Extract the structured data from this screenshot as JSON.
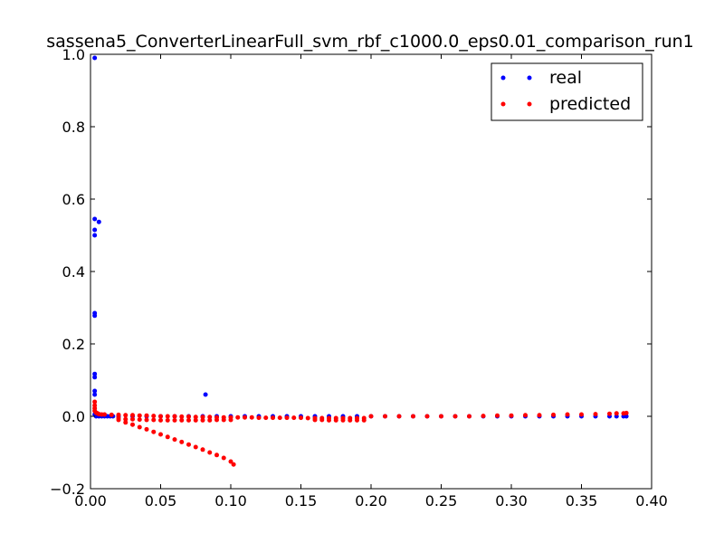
{
  "chart_data": {
    "type": "scatter",
    "title": "sassena5_ConverterLinearFull_svm_rbf_c1000.0_eps0.01_comparison_run1",
    "xlabel": "",
    "ylabel": "",
    "xlim": [
      0.0,
      0.4
    ],
    "ylim": [
      -0.2,
      1.0
    ],
    "x_ticks": [
      "0.00",
      "0.05",
      "0.10",
      "0.15",
      "0.20",
      "0.25",
      "0.30",
      "0.35",
      "0.40"
    ],
    "y_ticks": [
      "−0.2",
      "0.0",
      "0.2",
      "0.4",
      "0.6",
      "0.8",
      "1.0"
    ],
    "grid": false,
    "legend_position": "top-right",
    "series": [
      {
        "name": "real",
        "color": "#0000ff",
        "points": [
          [
            0.003,
            0.99
          ],
          [
            0.003,
            0.545
          ],
          [
            0.003,
            0.515
          ],
          [
            0.003,
            0.5
          ],
          [
            0.006,
            0.537
          ],
          [
            0.003,
            0.285
          ],
          [
            0.003,
            0.278
          ],
          [
            0.003,
            0.117
          ],
          [
            0.003,
            0.108
          ],
          [
            0.003,
            0.07
          ],
          [
            0.003,
            0.06
          ],
          [
            0.082,
            0.06
          ],
          [
            0.003,
            0.005
          ],
          [
            0.004,
            0.0
          ],
          [
            0.006,
            0.0
          ],
          [
            0.008,
            0.0
          ],
          [
            0.01,
            0.0
          ],
          [
            0.012,
            0.0
          ],
          [
            0.014,
            0.0
          ],
          [
            0.016,
            0.0
          ],
          [
            0.02,
            0.0
          ],
          [
            0.03,
            0.0
          ],
          [
            0.04,
            0.0
          ],
          [
            0.05,
            0.0
          ],
          [
            0.06,
            0.0
          ],
          [
            0.07,
            0.0
          ],
          [
            0.08,
            0.0
          ],
          [
            0.09,
            0.0
          ],
          [
            0.1,
            0.0
          ],
          [
            0.11,
            0.0
          ],
          [
            0.12,
            0.0
          ],
          [
            0.13,
            0.0
          ],
          [
            0.14,
            0.0
          ],
          [
            0.15,
            0.0
          ],
          [
            0.16,
            0.0
          ],
          [
            0.17,
            0.0
          ],
          [
            0.18,
            0.0
          ],
          [
            0.19,
            0.0
          ],
          [
            0.2,
            0.0
          ],
          [
            0.21,
            0.0
          ],
          [
            0.22,
            0.0
          ],
          [
            0.23,
            0.0
          ],
          [
            0.24,
            0.0
          ],
          [
            0.25,
            0.0
          ],
          [
            0.26,
            0.0
          ],
          [
            0.27,
            0.0
          ],
          [
            0.28,
            0.0
          ],
          [
            0.29,
            0.0
          ],
          [
            0.3,
            0.0
          ],
          [
            0.31,
            0.0
          ],
          [
            0.32,
            0.0
          ],
          [
            0.33,
            0.0
          ],
          [
            0.34,
            0.0
          ],
          [
            0.35,
            0.0
          ],
          [
            0.36,
            0.0
          ],
          [
            0.37,
            0.0
          ],
          [
            0.375,
            0.0
          ],
          [
            0.38,
            0.0
          ],
          [
            0.382,
            0.0
          ]
        ]
      },
      {
        "name": "predicted",
        "color": "#ff0000",
        "points": [
          [
            0.003,
            0.04
          ],
          [
            0.003,
            0.03
          ],
          [
            0.003,
            0.022
          ],
          [
            0.003,
            0.015
          ],
          [
            0.004,
            0.01
          ],
          [
            0.005,
            0.008
          ],
          [
            0.006,
            0.006
          ],
          [
            0.008,
            0.005
          ],
          [
            0.01,
            0.005
          ],
          [
            0.015,
            0.004
          ],
          [
            0.02,
            0.004
          ],
          [
            0.025,
            0.003
          ],
          [
            0.03,
            0.003
          ],
          [
            0.035,
            0.002
          ],
          [
            0.04,
            0.002
          ],
          [
            0.045,
            0.001
          ],
          [
            0.05,
            0.0
          ],
          [
            0.055,
            0.0
          ],
          [
            0.06,
            0.0
          ],
          [
            0.065,
            -0.001
          ],
          [
            0.07,
            -0.001
          ],
          [
            0.075,
            -0.002
          ],
          [
            0.08,
            -0.002
          ],
          [
            0.085,
            -0.002
          ],
          [
            0.09,
            -0.003
          ],
          [
            0.095,
            -0.003
          ],
          [
            0.1,
            -0.003
          ],
          [
            0.105,
            -0.003
          ],
          [
            0.11,
            -0.003
          ],
          [
            0.115,
            -0.003
          ],
          [
            0.12,
            -0.004
          ],
          [
            0.125,
            -0.004
          ],
          [
            0.13,
            -0.004
          ],
          [
            0.135,
            -0.004
          ],
          [
            0.14,
            -0.004
          ],
          [
            0.145,
            -0.004
          ],
          [
            0.15,
            -0.004
          ],
          [
            0.155,
            -0.005
          ],
          [
            0.16,
            -0.005
          ],
          [
            0.165,
            -0.005
          ],
          [
            0.17,
            -0.005
          ],
          [
            0.175,
            -0.005
          ],
          [
            0.18,
            -0.005
          ],
          [
            0.185,
            -0.005
          ],
          [
            0.19,
            -0.005
          ],
          [
            0.195,
            -0.005
          ],
          [
            0.02,
            -0.005
          ],
          [
            0.025,
            -0.008
          ],
          [
            0.03,
            -0.008
          ],
          [
            0.035,
            -0.009
          ],
          [
            0.04,
            -0.01
          ],
          [
            0.045,
            -0.01
          ],
          [
            0.05,
            -0.011
          ],
          [
            0.055,
            -0.011
          ],
          [
            0.06,
            -0.011
          ],
          [
            0.065,
            -0.011
          ],
          [
            0.07,
            -0.011
          ],
          [
            0.075,
            -0.011
          ],
          [
            0.08,
            -0.011
          ],
          [
            0.085,
            -0.011
          ],
          [
            0.09,
            -0.01
          ],
          [
            0.095,
            -0.01
          ],
          [
            0.1,
            -0.01
          ],
          [
            0.16,
            -0.01
          ],
          [
            0.165,
            -0.01
          ],
          [
            0.17,
            -0.011
          ],
          [
            0.175,
            -0.011
          ],
          [
            0.18,
            -0.011
          ],
          [
            0.185,
            -0.011
          ],
          [
            0.19,
            -0.011
          ],
          [
            0.195,
            -0.011
          ],
          [
            0.2,
            0.0
          ],
          [
            0.21,
            0.0
          ],
          [
            0.22,
            0.0
          ],
          [
            0.23,
            0.0
          ],
          [
            0.24,
            0.0
          ],
          [
            0.25,
            0.0
          ],
          [
            0.26,
            0.0
          ],
          [
            0.27,
            0.0
          ],
          [
            0.28,
            0.001
          ],
          [
            0.29,
            0.002
          ],
          [
            0.3,
            0.002
          ],
          [
            0.31,
            0.003
          ],
          [
            0.32,
            0.003
          ],
          [
            0.33,
            0.004
          ],
          [
            0.34,
            0.005
          ],
          [
            0.35,
            0.005
          ],
          [
            0.36,
            0.006
          ],
          [
            0.37,
            0.007
          ],
          [
            0.375,
            0.008
          ],
          [
            0.38,
            0.008
          ],
          [
            0.382,
            0.009
          ],
          [
            0.02,
            -0.01
          ],
          [
            0.025,
            -0.017
          ],
          [
            0.03,
            -0.023
          ],
          [
            0.035,
            -0.03
          ],
          [
            0.04,
            -0.036
          ],
          [
            0.045,
            -0.043
          ],
          [
            0.05,
            -0.05
          ],
          [
            0.055,
            -0.057
          ],
          [
            0.06,
            -0.064
          ],
          [
            0.065,
            -0.071
          ],
          [
            0.07,
            -0.078
          ],
          [
            0.075,
            -0.085
          ],
          [
            0.08,
            -0.092
          ],
          [
            0.085,
            -0.1
          ],
          [
            0.09,
            -0.107
          ],
          [
            0.095,
            -0.115
          ],
          [
            0.1,
            -0.125
          ],
          [
            0.102,
            -0.133
          ]
        ]
      }
    ]
  }
}
